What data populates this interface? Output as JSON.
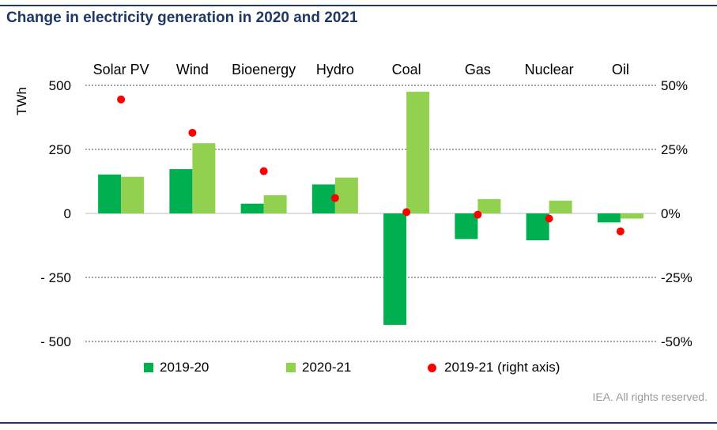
{
  "title": "Change in electricity generation in 2020 and 2021",
  "source": "IEA. All rights reserved.",
  "colors": {
    "series_2019_20": "#00b050",
    "series_2020_21": "#92d050",
    "series_right": "#ff0000",
    "title": "#1f3864",
    "grid": "#a6a6a6"
  },
  "chart_data": {
    "type": "bar",
    "categories": [
      "Solar PV",
      "Wind",
      "Bioenergy",
      "Hydro",
      "Coal",
      "Gas",
      "Nuclear",
      "Oil"
    ],
    "ylabel": "TWh",
    "ylim": [
      -500,
      500
    ],
    "yticks": [
      500,
      250,
      0,
      -250,
      -500
    ],
    "ytick_labels": [
      "500",
      "250",
      "0",
      "- 250",
      "- 500"
    ],
    "y2lim": [
      -50,
      50
    ],
    "y2ticks": [
      50,
      25,
      0,
      -25,
      -50
    ],
    "y2tick_labels": [
      "50%",
      "25%",
      "0%",
      "-25%",
      "-50%"
    ],
    "grid": "dotted horizontal at ±250 and ±500",
    "series": [
      {
        "name": "2019-20",
        "type": "bar",
        "axis": "left",
        "values": [
          152,
          173,
          38,
          113,
          -435,
          -100,
          -105,
          -35
        ]
      },
      {
        "name": "2020-21",
        "type": "bar",
        "axis": "left",
        "values": [
          143,
          274,
          71,
          140,
          475,
          56,
          50,
          -20
        ]
      },
      {
        "name": "2019-21 (right axis)",
        "type": "scatter",
        "axis": "right",
        "values": [
          44.5,
          31.5,
          16.5,
          6,
          0.5,
          -0.5,
          -2,
          -7
        ]
      }
    ],
    "legend_position": "bottom"
  }
}
